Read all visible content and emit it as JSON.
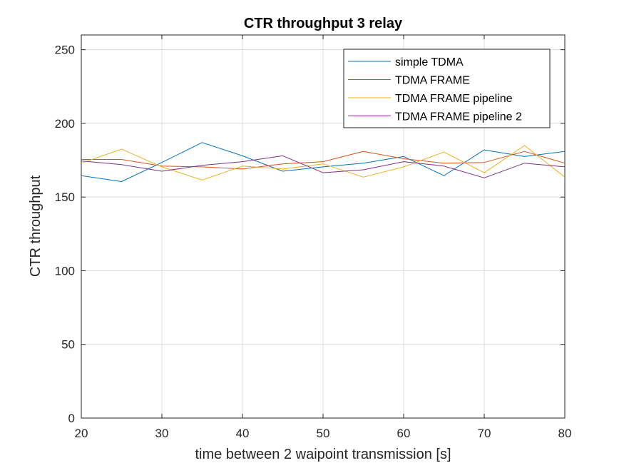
{
  "chart_data": {
    "type": "line",
    "title": "CTR throughput 3 relay",
    "xlabel": "time between 2 waipoint transmission [s]",
    "ylabel": "CTR throughput",
    "xlim": [
      20,
      80
    ],
    "ylim": [
      0,
      260
    ],
    "xticks": [
      20,
      30,
      40,
      50,
      60,
      70,
      80
    ],
    "yticks": [
      0,
      50,
      100,
      150,
      200,
      250
    ],
    "grid": true,
    "legend_position": "top-right",
    "x": [
      20,
      25,
      30,
      35,
      40,
      45,
      50,
      55,
      60,
      65,
      70,
      75,
      80
    ],
    "series": [
      {
        "name": "simple TDMA",
        "color": "#0072BD",
        "values": [
          164.5,
          160.5,
          173.5,
          187,
          178,
          167.5,
          170.5,
          173,
          177.5,
          164.5,
          182,
          177.5,
          181
        ]
      },
      {
        "name": "TDMA FRAME",
        "color": "#D95319",
        "values": [
          175.5,
          175.5,
          171,
          170.5,
          169,
          172.5,
          174,
          181,
          176,
          173,
          173.5,
          181,
          173
        ]
      },
      {
        "name": "TDMA FRAME pipeline",
        "color": "#EDB120",
        "values": [
          173,
          182.5,
          170.5,
          161.5,
          171,
          169,
          172.5,
          163.5,
          170.5,
          180.5,
          166.5,
          185,
          163.5
        ]
      },
      {
        "name": "TDMA FRAME pipeline 2",
        "color": "#7E2F8E",
        "values": [
          174.5,
          172,
          167.5,
          171.5,
          174,
          178,
          166.5,
          168.5,
          174,
          171,
          163,
          173,
          170.5
        ]
      }
    ]
  }
}
